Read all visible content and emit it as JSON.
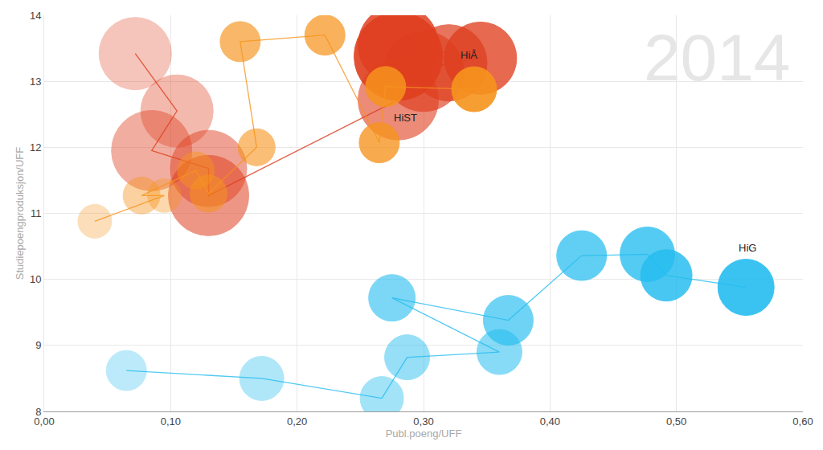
{
  "chart_data": {
    "type": "bubble",
    "watermark": "2014",
    "x_label": "Publ.poeng/UFF",
    "y_label": "Studiepoengproduksjon/UFF",
    "xlim": [
      0,
      0.6
    ],
    "ylim": [
      8,
      14
    ],
    "xticks": [
      {
        "value": 0,
        "label": "0,00"
      },
      {
        "value": 0.1,
        "label": "0,10"
      },
      {
        "value": 0.2,
        "label": "0,20"
      },
      {
        "value": 0.3,
        "label": "0,30"
      },
      {
        "value": 0.4,
        "label": "0,40"
      },
      {
        "value": 0.5,
        "label": "0,50"
      },
      {
        "value": 0.6,
        "label": "0,60"
      }
    ],
    "yticks": [
      8,
      9,
      10,
      11,
      12,
      13,
      14
    ],
    "grid": true,
    "series": [
      {
        "color": "#df3f1f",
        "x": [
          0.072,
          0.105,
          0.085,
          0.13,
          0.13,
          0.28,
          0.3,
          0.32,
          0.345,
          0.28,
          0.28
        ],
        "values": [
          13.42,
          12.55,
          11.95,
          11.68,
          11.27,
          12.72,
          13.15,
          13.28,
          13.35,
          13.55,
          13.38
        ],
        "sizes": [
          90,
          90,
          100,
          95,
          100,
          100,
          100,
          95,
          90,
          100,
          110
        ]
      },
      {
        "color": "#f7941d",
        "x": [
          0.04,
          0.095,
          0.077,
          0.12,
          0.13,
          0.168,
          0.155,
          0.222,
          0.265,
          0.27,
          0.34
        ],
        "values": [
          10.88,
          11.27,
          11.27,
          11.65,
          11.3,
          12.0,
          13.6,
          13.7,
          12.07,
          12.92,
          12.88
        ],
        "sizes": [
          42,
          42,
          46,
          46,
          46,
          46,
          50,
          50,
          50,
          50,
          56
        ]
      },
      {
        "color": "#25bdf0",
        "x": [
          0.065,
          0.172,
          0.267,
          0.287,
          0.36,
          0.275,
          0.367,
          0.425,
          0.477,
          0.492,
          0.555
        ],
        "values": [
          8.62,
          8.5,
          8.2,
          8.82,
          8.9,
          9.72,
          9.38,
          10.36,
          10.38,
          10.06,
          9.88
        ],
        "sizes": [
          50,
          55,
          54,
          56,
          56,
          58,
          62,
          62,
          68,
          64,
          70
        ]
      }
    ],
    "annotations": [
      {
        "text": "HiÅ",
        "x": 0.336,
        "y": 13.4
      },
      {
        "text": "HiST",
        "x": 0.286,
        "y": 12.45
      },
      {
        "text": "HiG",
        "x": 0.556,
        "y": 10.48
      }
    ]
  }
}
